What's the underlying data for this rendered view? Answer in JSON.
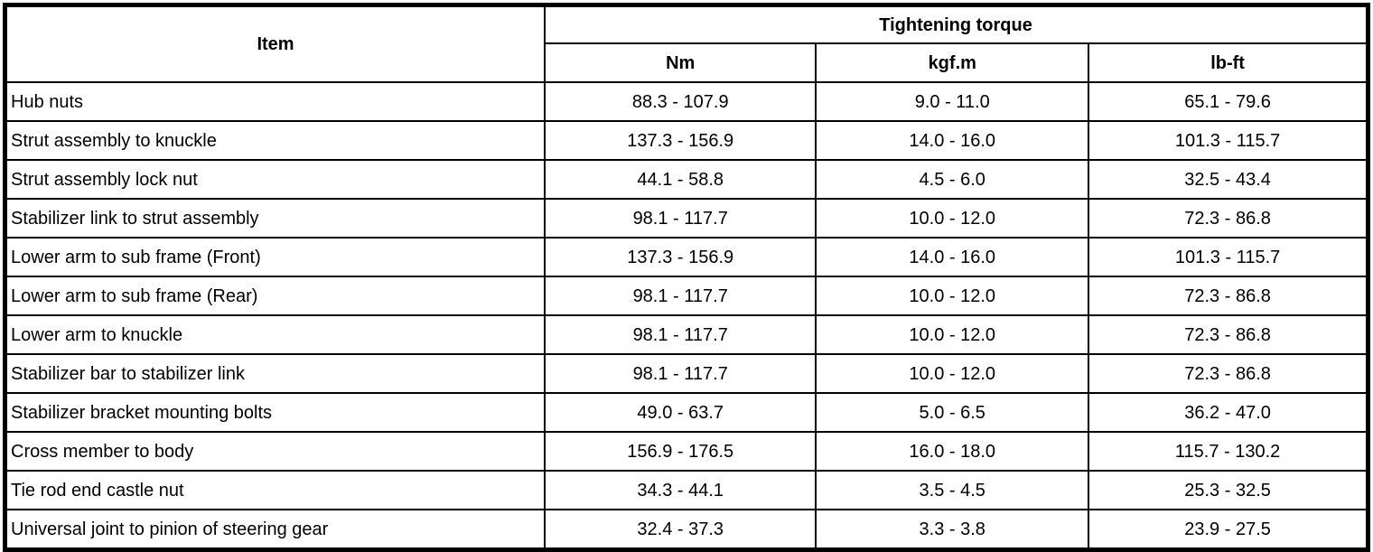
{
  "table": {
    "item_header": "Item",
    "group_header": "Tightening torque",
    "unit_headers": {
      "nm": "Nm",
      "kgfm": "kgf.m",
      "lbft": "lb-ft"
    },
    "rows": [
      {
        "item": "Hub nuts",
        "nm": "88.3 - 107.9",
        "kgfm": "9.0 - 11.0",
        "lbft": "65.1 - 79.6"
      },
      {
        "item": "Strut assembly to knuckle",
        "nm": "137.3 - 156.9",
        "kgfm": "14.0 - 16.0",
        "lbft": "101.3 - 115.7"
      },
      {
        "item": "Strut assembly lock nut",
        "nm": "44.1 - 58.8",
        "kgfm": "4.5 - 6.0",
        "lbft": "32.5 - 43.4"
      },
      {
        "item": "Stabilizer link to strut assembly",
        "nm": "98.1 - 117.7",
        "kgfm": "10.0 - 12.0",
        "lbft": "72.3 - 86.8"
      },
      {
        "item": "Lower arm to sub frame (Front)",
        "nm": "137.3 - 156.9",
        "kgfm": "14.0 - 16.0",
        "lbft": "101.3 - 115.7"
      },
      {
        "item": "Lower arm to sub frame (Rear)",
        "nm": "98.1 - 117.7",
        "kgfm": "10.0 - 12.0",
        "lbft": "72.3 - 86.8"
      },
      {
        "item": "Lower arm to knuckle",
        "nm": "98.1 - 117.7",
        "kgfm": "10.0 - 12.0",
        "lbft": "72.3 - 86.8"
      },
      {
        "item": "Stabilizer bar to stabilizer link",
        "nm": "98.1 - 117.7",
        "kgfm": "10.0 - 12.0",
        "lbft": "72.3 - 86.8"
      },
      {
        "item": "Stabilizer bracket mounting bolts",
        "nm": "49.0 - 63.7",
        "kgfm": "5.0 - 6.5",
        "lbft": "36.2 - 47.0"
      },
      {
        "item": "Cross member to body",
        "nm": "156.9 - 176.5",
        "kgfm": "16.0 - 18.0",
        "lbft": "115.7 - 130.2"
      },
      {
        "item": "Tie rod end castle nut",
        "nm": "34.3 - 44.1",
        "kgfm": "3.5 - 4.5",
        "lbft": "25.3 - 32.5"
      },
      {
        "item": "Universal joint to pinion of steering gear",
        "nm": "32.4 - 37.3",
        "kgfm": "3.3 - 3.8",
        "lbft": "23.9 - 27.5"
      }
    ],
    "colors": {
      "border": "#000000",
      "text": "#000000",
      "background": "#ffffff"
    }
  }
}
